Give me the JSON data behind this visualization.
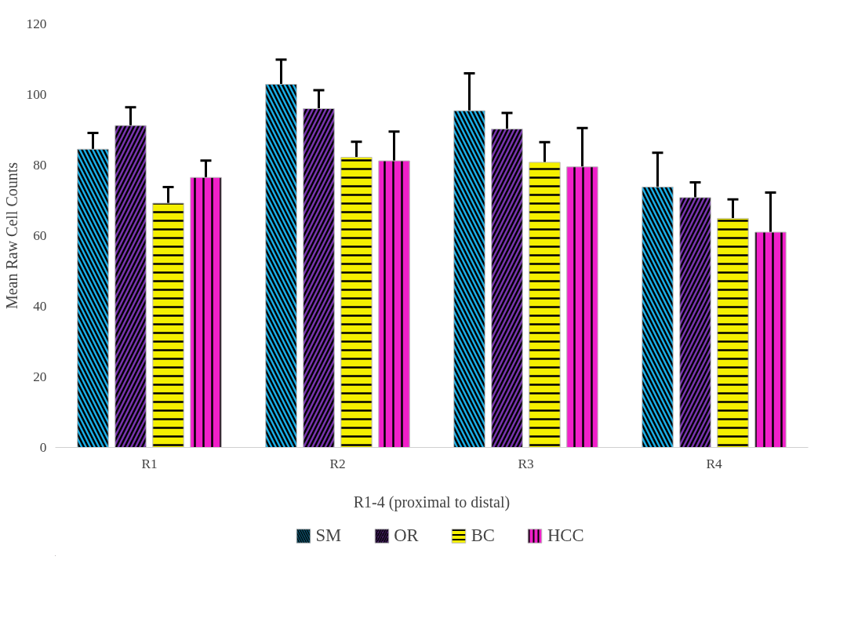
{
  "chart_data": {
    "type": "bar",
    "xlabel": "R1-4 (proximal to distal)",
    "ylabel": "Mean Raw Cell Counts",
    "categories": [
      "R1",
      "R2",
      "R3",
      "R4"
    ],
    "series": [
      {
        "name": "SM",
        "color": "#1ab0e8",
        "values": [
          84.5,
          102.9,
          95.4,
          73.8
        ],
        "errors": [
          4.6,
          7.0,
          10.6,
          9.7
        ]
      },
      {
        "name": "OR",
        "color": "#7a35b0",
        "values": [
          91.2,
          96.0,
          90.2,
          70.8
        ],
        "errors": [
          5.2,
          5.2,
          4.6,
          4.3
        ]
      },
      {
        "name": "BC",
        "color": "#f5f000",
        "values": [
          69.2,
          82.2,
          80.8,
          64.9
        ],
        "errors": [
          4.6,
          4.4,
          5.7,
          5.4
        ]
      },
      {
        "name": "HCC",
        "color": "#f020c8",
        "values": [
          76.5,
          81.2,
          79.5,
          61.0
        ],
        "errors": [
          4.8,
          8.3,
          11.0,
          11.2
        ]
      }
    ],
    "ylim": [
      0,
      120
    ],
    "yticks": [
      0,
      20,
      40,
      60,
      80,
      100,
      120
    ],
    "grid": false,
    "legend": "bottom"
  }
}
